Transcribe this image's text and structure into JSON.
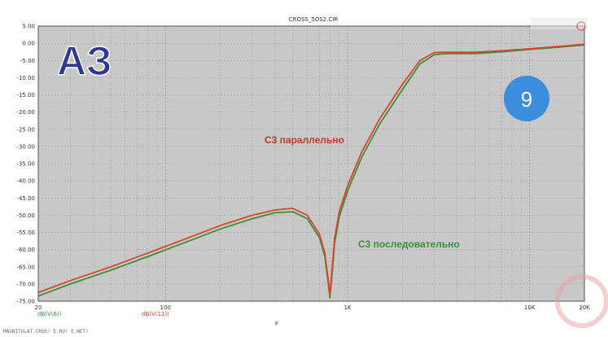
{
  "chart_data": {
    "type": "line",
    "title": "CROSS_5OS2.CIR",
    "xlabel": "F",
    "ylabel": "",
    "x_scale": "log",
    "xlim": [
      20,
      20000
    ],
    "ylim": [
      -75,
      5
    ],
    "grid": true,
    "x_ticks": [
      {
        "value": 20,
        "label": "20"
      },
      {
        "value": 100,
        "label": "100"
      },
      {
        "value": 1000,
        "label": "1K"
      },
      {
        "value": 10000,
        "label": "10K"
      },
      {
        "value": 20000,
        "label": "20K"
      }
    ],
    "y_ticks": [
      {
        "value": 5,
        "label": "5.00"
      },
      {
        "value": 0,
        "label": "0.00"
      },
      {
        "value": -5,
        "label": "-5.00"
      },
      {
        "value": -10,
        "label": "-10.00"
      },
      {
        "value": -15,
        "label": "-15.00"
      },
      {
        "value": -20,
        "label": "-20.00"
      },
      {
        "value": -25,
        "label": "-25.00"
      },
      {
        "value": -30,
        "label": "-30.00"
      },
      {
        "value": -35,
        "label": "-35.00"
      },
      {
        "value": -40,
        "label": "-40.00"
      },
      {
        "value": -45,
        "label": "-45.00"
      },
      {
        "value": -50,
        "label": "-50.00"
      },
      {
        "value": -55,
        "label": "-55.00"
      },
      {
        "value": -60,
        "label": "-60.00"
      },
      {
        "value": -65,
        "label": "-65.00"
      },
      {
        "value": -70,
        "label": "-70.00"
      },
      {
        "value": -75,
        "label": "-75.00"
      }
    ],
    "series": [
      {
        "name": "dB(V(6))",
        "color": "#3a8f3a",
        "x": [
          20,
          30,
          50,
          80,
          120,
          200,
          300,
          400,
          500,
          600,
          700,
          750,
          780,
          800,
          820,
          850,
          900,
          1000,
          1200,
          1500,
          2000,
          2500,
          3000,
          3500,
          4000,
          5000,
          7000,
          10000,
          14000,
          20000
        ],
        "values": [
          -73.5,
          -70,
          -66,
          -62,
          -58.5,
          -54,
          -51,
          -49.3,
          -49,
          -51,
          -56.5,
          -62,
          -69,
          -74,
          -68,
          -58,
          -50.5,
          -43,
          -33,
          -23.5,
          -13.5,
          -6,
          -3.3,
          -3,
          -3,
          -3,
          -2.5,
          -1.8,
          -1.2,
          -0.5
        ]
      },
      {
        "name": "dB(V(11))",
        "color": "#d9452b",
        "x": [
          20,
          30,
          50,
          80,
          120,
          200,
          300,
          400,
          500,
          600,
          700,
          750,
          780,
          800,
          820,
          850,
          900,
          1000,
          1200,
          1500,
          2000,
          2500,
          3000,
          3500,
          4000,
          5000,
          7000,
          10000,
          14000,
          20000
        ],
        "values": [
          -72.5,
          -69,
          -65,
          -61,
          -57.5,
          -53,
          -50,
          -48.5,
          -48,
          -50,
          -55.5,
          -61,
          -68,
          -73,
          -66.5,
          -56.5,
          -49,
          -41.5,
          -31.5,
          -22,
          -12,
          -5,
          -2.7,
          -2.6,
          -2.6,
          -2.6,
          -2.2,
          -1.6,
          -1,
          -0.3
        ]
      }
    ],
    "annotations": [
      {
        "text": "С3 параллельно",
        "color": "#c0392b"
      },
      {
        "text": "С3 последовательно",
        "color": "#3a8f3a"
      }
    ]
  },
  "logo_text": "АЗ",
  "badge_number": "9",
  "footer": "MAGNITOLAT.CROS! E.RU! E.NET!"
}
